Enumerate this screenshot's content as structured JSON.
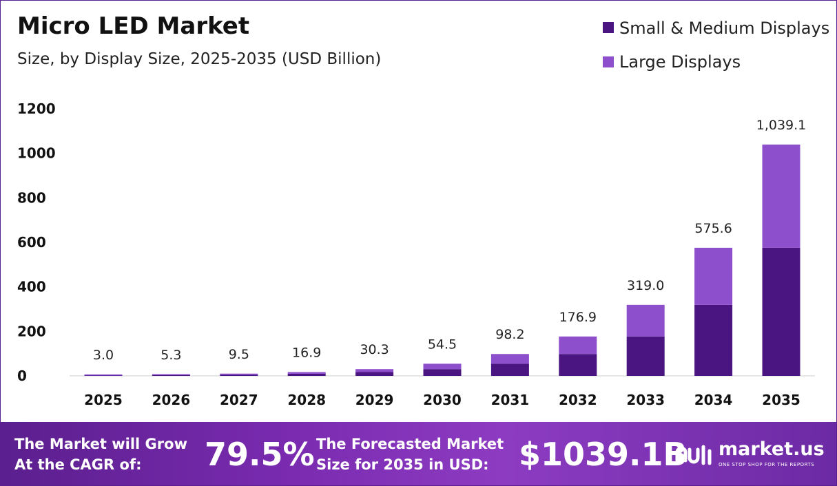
{
  "chart_data": {
    "type": "bar",
    "stacked": true,
    "title": "Micro LED Market",
    "subtitle": "Size, by Display Size, 2025-2035 (USD Billion)",
    "categories": [
      "2025",
      "2026",
      "2027",
      "2028",
      "2029",
      "2030",
      "2031",
      "2032",
      "2033",
      "2034",
      "2035"
    ],
    "series": [
      {
        "name": "Small & Medium Displays",
        "color": "#4a1580",
        "values": [
          1.7,
          3.0,
          5.4,
          9.5,
          16.9,
          30.3,
          54.5,
          98.2,
          176.9,
          319.0,
          575.6
        ]
      },
      {
        "name": "Large Displays",
        "color": "#8d4fcc",
        "values": [
          1.3,
          2.3,
          4.1,
          7.4,
          13.4,
          24.2,
          43.7,
          78.7,
          142.1,
          256.6,
          463.5
        ]
      }
    ],
    "totals": [
      3.0,
      5.3,
      9.5,
      16.9,
      30.3,
      54.5,
      98.2,
      176.9,
      319.0,
      575.6,
      1039.1
    ],
    "total_labels": [
      "3.0",
      "5.3",
      "9.5",
      "16.9",
      "30.3",
      "54.5",
      "98.2",
      "176.9",
      "319.0",
      "575.6",
      "1,039.1"
    ],
    "ylim": [
      0,
      1200
    ],
    "yticks": [
      "0",
      "200",
      "400",
      "600",
      "800",
      "1000",
      "1200"
    ],
    "xlabel": "",
    "ylabel": "",
    "legend_position": "top-right",
    "grid": false
  },
  "footer": {
    "cagr_line1": "The Market will Grow",
    "cagr_line2": "At the CAGR of:",
    "cagr_value": "79.5%",
    "size_line1": "The Forecasted Market",
    "size_line2": "Size for 2035 in USD:",
    "size_value": "$1039.1B",
    "brand_name": "market.us",
    "brand_tagline": "ONE STOP SHOP FOR THE REPORTS",
    "brand_icon": "market-us-logo-icon"
  }
}
